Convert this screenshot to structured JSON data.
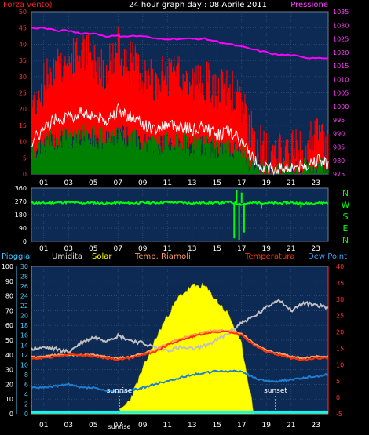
{
  "title": "24 hour graph day : 08 Aprile 2011",
  "top_chart": {
    "left_label": "Forza vento)",
    "right_label": "Pressione",
    "left_ticks": [
      "50",
      "45",
      "40",
      "35",
      "30",
      "25",
      "20",
      "15",
      "10",
      "5",
      "0"
    ],
    "right_ticks": [
      "1035",
      "1030",
      "1025",
      "1020",
      "1015",
      "1010",
      "1005",
      "1000",
      "995",
      "990",
      "985",
      "980",
      "975"
    ],
    "x_ticks": [
      "01",
      "03",
      "05",
      "07",
      "09",
      "11",
      "13",
      "15",
      "17",
      "19",
      "21",
      "23"
    ]
  },
  "dir_chart": {
    "left_ticks": [
      "360",
      "270",
      "180",
      "90",
      "0"
    ],
    "compass_labels": [
      "N",
      "W",
      "S",
      "E",
      "N"
    ],
    "x_ticks": [
      "01",
      "03",
      "05",
      "07",
      "09",
      "11",
      "13",
      "15",
      "17",
      "19",
      "21",
      "23"
    ]
  },
  "bottom_chart": {
    "legend": {
      "pioggia": "Pioggia",
      "umidita": "Umidita",
      "solar": "Solar",
      "riarnoli": "Temp. Riarnoli",
      "temperatura": "Temperatura",
      "dewpoint": "Dew Point"
    },
    "left_ticks_outer": [
      "100",
      "90",
      "80",
      "70",
      "60",
      "50",
      "40",
      "30",
      "20",
      "10",
      "0"
    ],
    "left_ticks_inner": [
      "30",
      "28",
      "26",
      "24",
      "22",
      "20",
      "18",
      "16",
      "14",
      "12",
      "10",
      "8",
      "6",
      "4",
      "2",
      "0"
    ],
    "right_ticks": [
      "40",
      "35",
      "30",
      "25",
      "20",
      "15",
      "10",
      "5",
      "0",
      "-5"
    ],
    "x_ticks": [
      "01",
      "03",
      "05",
      "07",
      "09",
      "11",
      "13",
      "15",
      "17",
      "19",
      "21",
      "23"
    ],
    "sunrise": "sunrise",
    "sunset": "sunset",
    "sunrise_axis": "sunrise"
  },
  "colors": {
    "wind_gust": "#ff0000",
    "wind_avg_white": "#ffffff",
    "wind_avg_green": "#008000",
    "pressure": "#ff00ff",
    "direction": "#00ff00",
    "solar": "#ffff00",
    "humidity": "#c0c0c0",
    "temperature": "#ff3300",
    "riarnoli": "#ff9966",
    "dewpoint": "#1e7fd0",
    "pioggia": "#00ffff",
    "plot_bg": "#0d2a55"
  },
  "chart_data": [
    {
      "type": "line",
      "title": "24 hour graph day : 08 Aprile 2011",
      "x": [
        "00",
        "01",
        "02",
        "03",
        "04",
        "05",
        "06",
        "07",
        "08",
        "09",
        "10",
        "11",
        "12",
        "13",
        "14",
        "15",
        "16",
        "17",
        "18",
        "19",
        "20",
        "21",
        "22",
        "23",
        "24"
      ],
      "series": [
        {
          "name": "Forza vento)",
          "values": [
            18,
            25,
            32,
            31,
            35,
            33,
            30,
            36,
            32,
            28,
            25,
            28,
            27,
            25,
            26,
            22,
            24,
            18,
            8,
            3,
            3,
            4,
            4,
            8,
            6
          ]
        },
        {
          "name": "Pressione",
          "values": [
            1029,
            1029,
            1028,
            1028,
            1027,
            1027,
            1026,
            1026,
            1026,
            1026,
            1025,
            1025,
            1025,
            1025,
            1025,
            1024,
            1023,
            1022,
            1021,
            1020,
            1019,
            1019,
            1018,
            1018,
            1018
          ]
        }
      ],
      "ylim": [
        0,
        50
      ],
      "y2lim": [
        975,
        1035
      ]
    },
    {
      "type": "line",
      "x": [
        "00",
        "01",
        "02",
        "03",
        "04",
        "05",
        "06",
        "07",
        "08",
        "09",
        "10",
        "11",
        "12",
        "13",
        "14",
        "15",
        "16",
        "17",
        "18",
        "19",
        "20",
        "21",
        "22",
        "23",
        "24"
      ],
      "series": [
        {
          "values": [
            260,
            258,
            262,
            265,
            258,
            262,
            255,
            260,
            258,
            262,
            260,
            265,
            262,
            258,
            262,
            260,
            265,
            250,
            262,
            260,
            258,
            262,
            255,
            260,
            262
          ]
        }
      ],
      "ylim": [
        0,
        360
      ]
    },
    {
      "type": "line",
      "x": [
        "00",
        "01",
        "02",
        "03",
        "04",
        "05",
        "06",
        "07",
        "08",
        "09",
        "10",
        "11",
        "12",
        "13",
        "14",
        "15",
        "16",
        "17",
        "18",
        "19",
        "20",
        "21",
        "22",
        "23",
        "24"
      ],
      "series": [
        {
          "name": "Umidita",
          "values": [
            44,
            45,
            44,
            42,
            48,
            52,
            50,
            53,
            50,
            48,
            45,
            43,
            45,
            44,
            46,
            50,
            55,
            62,
            66,
            72,
            78,
            70,
            75,
            74,
            72
          ]
        },
        {
          "name": "Solar",
          "values": [
            0,
            0,
            0,
            0,
            0,
            0,
            0,
            0,
            3,
            9,
            15,
            20,
            24,
            26,
            26,
            23,
            20,
            14,
            0,
            0,
            0,
            0,
            0,
            0,
            0
          ]
        },
        {
          "name": "Temperatura",
          "values": [
            12,
            12,
            12.5,
            13,
            13,
            12.5,
            12,
            11.5,
            12,
            13,
            14,
            16,
            17.5,
            18.5,
            19.5,
            20,
            20,
            19,
            16,
            14,
            13,
            12,
            11.5,
            12,
            12
          ]
        },
        {
          "name": "Temp. Riarnoli",
          "values": [
            12.5,
            12.5,
            13,
            13,
            13,
            13,
            12.5,
            12,
            12.5,
            13.5,
            14.5,
            16.5,
            18,
            19,
            20,
            20.5,
            20.5,
            19.5,
            16.5,
            14.5,
            13.5,
            12.5,
            12,
            12.5,
            12.5
          ]
        },
        {
          "name": "Dew Point",
          "values": [
            3,
            3,
            3.5,
            4,
            3,
            3,
            2,
            1.5,
            2,
            3,
            4,
            5,
            6,
            7,
            7.5,
            8,
            8,
            8,
            6,
            5,
            5,
            5.5,
            6,
            6.5,
            7
          ]
        },
        {
          "name": "Pioggia",
          "values": [
            0,
            0,
            0,
            0,
            0,
            0,
            0,
            0,
            0,
            0,
            0,
            0,
            0,
            0,
            0,
            0,
            0,
            0,
            0,
            0,
            0,
            0,
            0,
            0,
            0
          ]
        }
      ],
      "ylim": [
        0,
        100
      ],
      "y2lim": [
        -5,
        40
      ]
    }
  ]
}
